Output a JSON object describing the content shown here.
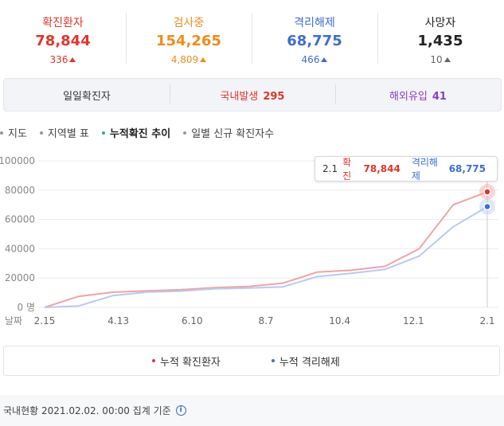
{
  "stats": [
    {
      "label": "확진환자",
      "value": "78,844",
      "delta": "336",
      "color": "#e0362c"
    },
    {
      "label": "검사중",
      "value": "154,265",
      "delta": "4,809",
      "color": "#f08c1e"
    },
    {
      "label": "격리해제",
      "value": "68,775",
      "delta": "466",
      "color": "#3f6dd3"
    },
    {
      "label": "사망자",
      "value": "1,435",
      "delta": "10",
      "color": "#222222"
    }
  ],
  "tabs": {
    "daily_label": "일일확진자",
    "domestic_label": "국내발생",
    "domestic_count": "295",
    "overseas_label": "해외유입",
    "overseas_count": "41"
  },
  "subtabs": [
    "지도",
    "지역별 표",
    "누적확진 추이",
    "일별 신규 확진자수"
  ],
  "tooltip": {
    "date": "2.1",
    "confirmed_label": "확진",
    "confirmed_value": "78,844",
    "released_label": "격리해제",
    "released_value": "68,775"
  },
  "legend": {
    "confirmed": "누적 확진환자",
    "released": "누적 격리해제"
  },
  "footer": {
    "text": "국내현황 2021.02.02. 00:00 집계 기준"
  },
  "colors": {
    "confirmed": "#f2a3a3",
    "released": "#b9c9f2",
    "confirmed_dot": "#e0362c",
    "released_dot": "#3f6dd3"
  },
  "chart_data": {
    "type": "line",
    "xlabel": "날짜",
    "x_ticks": [
      "2.15",
      "4.13",
      "6.10",
      "8.7",
      "10.4",
      "12.1",
      "2.1"
    ],
    "y_ticks": [
      "100000",
      "80000",
      "60000",
      "40000",
      "20000",
      "0 명"
    ],
    "ylim": [
      0,
      100000
    ],
    "grid": true,
    "series": [
      {
        "name": "누적 확진환자",
        "values": [
          0,
          7500,
          10300,
          11300,
          12000,
          13500,
          14300,
          16500,
          24000,
          25300,
          28000,
          40000,
          70000,
          78844
        ]
      },
      {
        "name": "누적 격리해제",
        "values": [
          0,
          1000,
          8000,
          10400,
          11100,
          12700,
          13200,
          14000,
          21000,
          23200,
          26000,
          35000,
          55000,
          68775
        ]
      }
    ]
  }
}
